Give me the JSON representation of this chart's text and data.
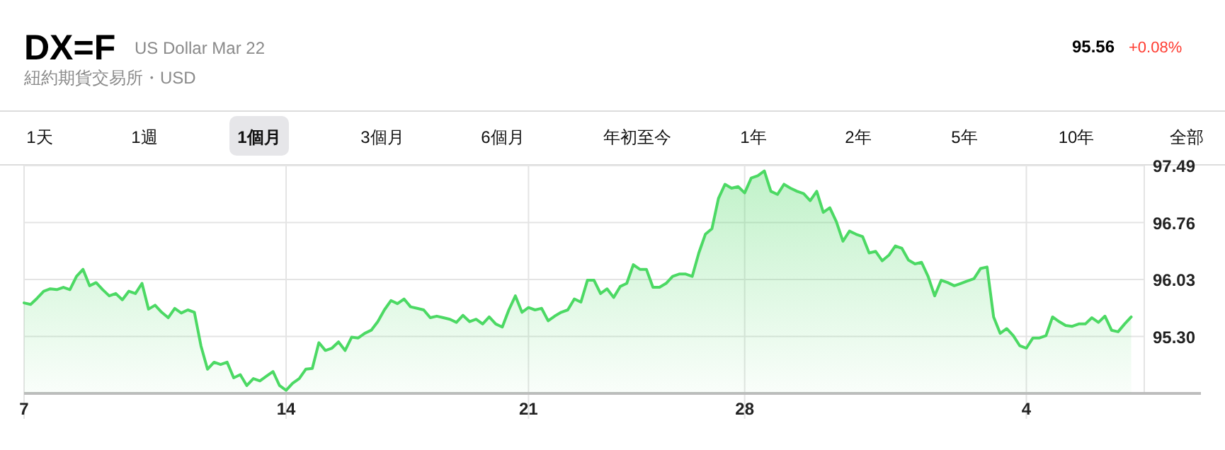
{
  "chart_data": {
    "type": "area",
    "title": "DX=F",
    "subtitle": "US Dollar Mar 22",
    "annotations": [
      "紐約期貨交易所・USD",
      "95.56",
      "+0.08%",
      "1天",
      "1週",
      "1個月",
      "3個月",
      "6個月",
      "年初至今",
      "1年",
      "2年",
      "5年",
      "10年",
      "全部"
    ],
    "categories": [
      "7",
      null,
      null,
      null,
      null,
      null,
      null,
      null,
      null,
      null,
      null,
      null,
      null,
      null,
      null,
      null,
      null,
      null,
      null,
      null,
      null,
      null,
      null,
      null,
      null,
      null,
      null,
      null,
      null,
      null,
      null,
      null,
      null,
      null,
      null,
      null,
      null,
      null,
      null,
      null,
      "14",
      null,
      null,
      null,
      null,
      null,
      null,
      null,
      null,
      null,
      null,
      null,
      null,
      null,
      null,
      null,
      null,
      null,
      null,
      null,
      null,
      null,
      null,
      null,
      null,
      null,
      null,
      null,
      null,
      null,
      null,
      null,
      null,
      null,
      null,
      null,
      null,
      "21",
      null,
      null,
      null,
      null,
      null,
      null,
      null,
      null,
      null,
      null,
      null,
      null,
      null,
      null,
      null,
      null,
      null,
      null,
      null,
      null,
      null,
      null,
      null,
      null,
      null,
      null,
      null,
      null,
      null,
      null,
      null,
      null,
      "28",
      null,
      null,
      null,
      null,
      null,
      null,
      null,
      null,
      null,
      null,
      null,
      null,
      null,
      null,
      null,
      null,
      null,
      null,
      null,
      null,
      null,
      null,
      null,
      null,
      null,
      null,
      null,
      null,
      null,
      null,
      null,
      null,
      null,
      null,
      null,
      null,
      null,
      null,
      null,
      null,
      null,
      null,
      "4",
      null,
      null,
      null,
      null,
      null,
      null,
      null,
      null,
      null,
      null,
      null,
      null,
      null,
      null,
      null,
      null
    ],
    "ylim": [
      94.57,
      97.49
    ],
    "yticks": [
      {
        "value": 95.3,
        "label": "95.30"
      },
      {
        "value": 96.03,
        "label": "96.03"
      },
      {
        "value": 96.76,
        "label": "96.76"
      },
      {
        "value": 97.49,
        "label": "97.49"
      }
    ],
    "grid": true,
    "series": [
      {
        "color": "#4cd964",
        "values": [
          95.73,
          95.71,
          95.79,
          95.88,
          95.91,
          95.9,
          95.93,
          95.9,
          96.07,
          96.16,
          95.95,
          95.99,
          95.9,
          95.82,
          95.85,
          95.77,
          95.88,
          95.85,
          95.98,
          95.65,
          95.7,
          95.61,
          95.54,
          95.66,
          95.6,
          95.64,
          95.61,
          95.18,
          94.88,
          94.97,
          94.94,
          94.97,
          94.77,
          94.81,
          94.67,
          94.76,
          94.73,
          94.79,
          94.85,
          94.67,
          94.61,
          94.7,
          94.76,
          94.88,
          94.89,
          95.22,
          95.12,
          95.15,
          95.23,
          95.12,
          95.29,
          95.28,
          95.34,
          95.38,
          95.49,
          95.64,
          95.76,
          95.72,
          95.78,
          95.68,
          95.66,
          95.64,
          95.54,
          95.56,
          95.54,
          95.52,
          95.48,
          95.57,
          95.49,
          95.52,
          95.46,
          95.55,
          95.46,
          95.42,
          95.64,
          95.82,
          95.61,
          95.67,
          95.64,
          95.66,
          95.5,
          95.56,
          95.61,
          95.64,
          95.78,
          95.74,
          96.02,
          96.02,
          95.85,
          95.91,
          95.8,
          95.94,
          95.98,
          96.22,
          96.16,
          96.16,
          95.93,
          95.93,
          95.98,
          96.07,
          96.1,
          96.1,
          96.07,
          96.37,
          96.61,
          96.68,
          97.07,
          97.25,
          97.2,
          97.22,
          97.14,
          97.33,
          97.36,
          97.42,
          97.16,
          97.12,
          97.25,
          97.2,
          97.16,
          97.13,
          97.04,
          97.16,
          96.89,
          96.95,
          96.77,
          96.52,
          96.65,
          96.61,
          96.58,
          96.37,
          96.39,
          96.27,
          96.34,
          96.46,
          96.43,
          96.28,
          96.23,
          96.25,
          96.07,
          95.82,
          96.02,
          95.99,
          95.95,
          95.98,
          96.01,
          96.04,
          96.17,
          96.19,
          95.55,
          95.34,
          95.4,
          95.31,
          95.18,
          95.15,
          95.28,
          95.28,
          95.31,
          95.55,
          95.49,
          95.44,
          95.43,
          95.46,
          95.46,
          95.54,
          95.48,
          95.56,
          95.38,
          95.36,
          95.46,
          95.55
        ]
      }
    ]
  }
}
